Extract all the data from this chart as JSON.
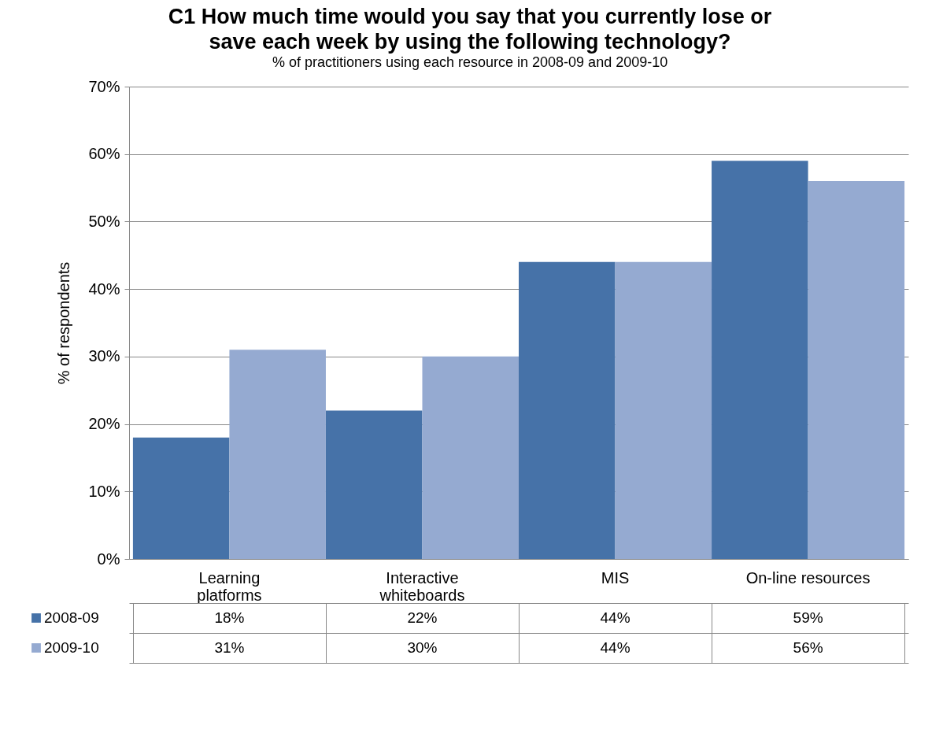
{
  "chart_data": {
    "type": "bar",
    "title": "C1 How much time would you say that you currently lose or save each week by using the following technology?",
    "subtitle": "% of practitioners using each resource in 2008-09 and 2009-10",
    "ylabel": "% of respondents",
    "categories": [
      "Learning platforms",
      "Interactive whiteboards",
      "MIS",
      "On-line resources"
    ],
    "series": [
      {
        "name": "2008-09",
        "color": "#4672a8",
        "values": [
          18,
          22,
          44,
          59
        ],
        "value_labels": [
          "18%",
          "22%",
          "44%",
          "59%"
        ]
      },
      {
        "name": "2009-10",
        "color": "#95aad1",
        "values": [
          31,
          30,
          44,
          56
        ],
        "value_labels": [
          "31%",
          "30%",
          "44%",
          "56%"
        ]
      }
    ],
    "ylim": [
      0,
      70
    ],
    "yticks": [
      {
        "value": 0,
        "label": "0%"
      },
      {
        "value": 10,
        "label": "10%"
      },
      {
        "value": 20,
        "label": "20%"
      },
      {
        "value": 30,
        "label": "30%"
      },
      {
        "value": 40,
        "label": "40%"
      },
      {
        "value": 50,
        "label": "50%"
      },
      {
        "value": 60,
        "label": "60%"
      },
      {
        "value": 70,
        "label": "70%"
      }
    ],
    "grid": "y",
    "legend": "bottom"
  }
}
